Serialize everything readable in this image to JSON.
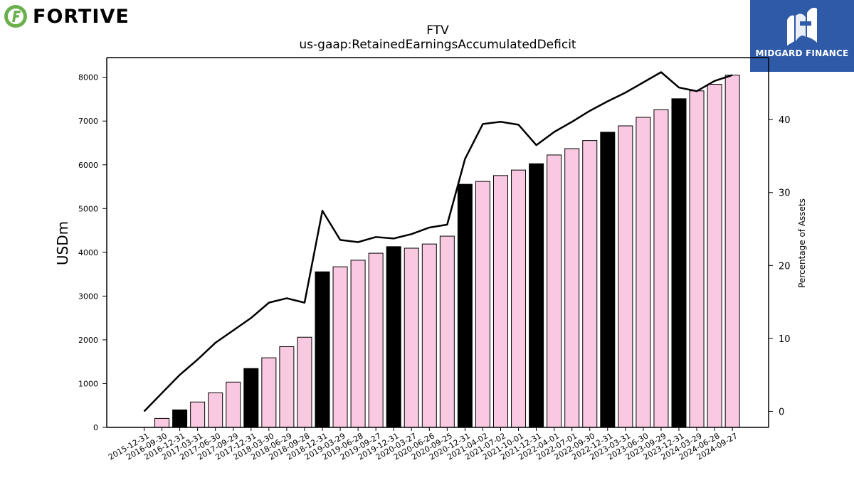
{
  "logos": {
    "left_text": "FORTIVE",
    "left_color": "#6ab04c",
    "right_text": "MIDGARD FINANCE",
    "right_bg": "#2f5aa8"
  },
  "chart_data": {
    "type": "bar",
    "title": "FTV",
    "subtitle": "us-gaap:RetainedEarningsAccumulatedDeficit",
    "ylabel": "USDm",
    "y2label": "Percentage of Assets",
    "ylim": [
      0,
      8450
    ],
    "y2lim": [
      -2.2,
      48.5
    ],
    "yticks": [
      0,
      1000,
      2000,
      3000,
      4000,
      5000,
      6000,
      7000,
      8000
    ],
    "y2ticks": [
      0,
      10,
      20,
      30,
      40
    ],
    "bar_colors": {
      "quarter": "#f9c9e1",
      "fiscal_year_end": "#000000"
    },
    "categories": [
      "2015-12-31",
      "2016-09-30",
      "2016-12-31",
      "2017-03-31",
      "2017-06-30",
      "2017-09-29",
      "2017-12-31",
      "2018-03-30",
      "2018-06-29",
      "2018-09-28",
      "2018-12-31",
      "2019-03-29",
      "2019-06-28",
      "2019-09-27",
      "2019-12-31",
      "2020-03-27",
      "2020-06-26",
      "2020-09-25",
      "2020-12-31",
      "2021-04-02",
      "2021-07-02",
      "2021-10-01",
      "2021-12-31",
      "2022-04-01",
      "2022-07-01",
      "2022-09-30",
      "2022-12-31",
      "2023-03-31",
      "2023-06-30",
      "2023-09-29",
      "2023-12-31",
      "2024-03-29",
      "2024-06-28",
      "2024-09-27"
    ],
    "series": [
      {
        "axis": "left",
        "values": [
          0,
          205,
          400,
          580,
          790,
          1035,
          1345,
          1590,
          1845,
          2060,
          3555,
          3670,
          3820,
          3980,
          4130,
          4095,
          4190,
          4370,
          5555,
          5620,
          5755,
          5880,
          6025,
          6225,
          6370,
          6555,
          6745,
          6890,
          7085,
          7260,
          7510,
          7690,
          7840,
          8050
        ],
        "fiscal_year_end": [
          true,
          false,
          true,
          false,
          false,
          false,
          true,
          false,
          false,
          false,
          true,
          false,
          false,
          false,
          true,
          false,
          false,
          false,
          true,
          false,
          false,
          false,
          true,
          false,
          false,
          false,
          true,
          false,
          false,
          false,
          true,
          false,
          false,
          false
        ]
      },
      {
        "axis": "right",
        "type": "line",
        "color": "#000000",
        "values": [
          0.0,
          2.5,
          5.0,
          7.1,
          9.4,
          11.1,
          12.8,
          14.9,
          15.5,
          14.9,
          27.5,
          23.5,
          23.2,
          23.9,
          23.7,
          24.3,
          25.2,
          25.6,
          34.6,
          39.4,
          39.7,
          39.3,
          36.5,
          38.3,
          39.7,
          41.2,
          42.5,
          43.7,
          45.1,
          46.5,
          44.4,
          43.9,
          45.3,
          46.1
        ]
      }
    ]
  }
}
